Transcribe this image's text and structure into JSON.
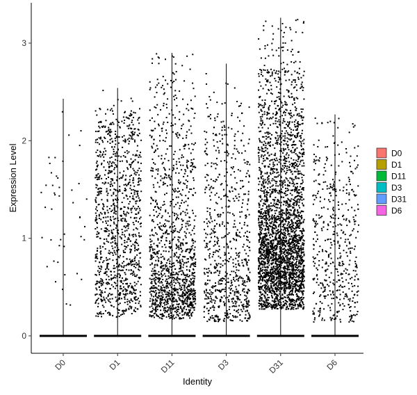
{
  "chart_data": {
    "type": "scatter",
    "subtype": "violin-jitter",
    "xlabel": "Identity",
    "ylabel": "Expression Level",
    "categories": [
      "D0",
      "D1",
      "D11",
      "D3",
      "D31",
      "D6"
    ],
    "ylim": [
      -0.17,
      3.3
    ],
    "yticks": [
      0,
      1,
      2,
      3
    ],
    "grid": false,
    "legend_position": "right",
    "legend": [
      {
        "name": "D0",
        "color": "#F8766D"
      },
      {
        "name": "D1",
        "color": "#B79F00"
      },
      {
        "name": "D11",
        "color": "#00BA38"
      },
      {
        "name": "D3",
        "color": "#00BFC4"
      },
      {
        "name": "D31",
        "color": "#619CFF"
      },
      {
        "name": "D6",
        "color": "#F564E3"
      }
    ],
    "groups": [
      {
        "name": "D0",
        "max": 2.43,
        "n_positive": 45,
        "profile": [
          [
            0.3,
            6
          ],
          [
            0.6,
            7
          ],
          [
            1.0,
            6
          ],
          [
            1.5,
            5
          ],
          [
            2.0,
            4
          ],
          [
            2.4,
            2
          ]
        ]
      },
      {
        "name": "D1",
        "max": 2.54,
        "n_positive": 1100,
        "profile": [
          [
            0.2,
            4
          ],
          [
            0.35,
            8
          ],
          [
            0.6,
            9
          ],
          [
            0.9,
            8
          ],
          [
            1.3,
            7
          ],
          [
            1.7,
            6
          ],
          [
            2.0,
            6
          ],
          [
            2.2,
            5
          ],
          [
            2.35,
            1
          ],
          [
            2.54,
            0.2
          ]
        ]
      },
      {
        "name": "D11",
        "max": 2.9,
        "n_positive": 1300,
        "profile": [
          [
            0.18,
            6
          ],
          [
            0.3,
            18
          ],
          [
            0.5,
            16
          ],
          [
            0.7,
            10
          ],
          [
            1.0,
            6
          ],
          [
            1.4,
            4
          ],
          [
            1.8,
            3
          ],
          [
            2.2,
            2
          ],
          [
            2.9,
            0.3
          ]
        ]
      },
      {
        "name": "D3",
        "max": 2.79,
        "n_positive": 750,
        "profile": [
          [
            0.15,
            5
          ],
          [
            0.3,
            14
          ],
          [
            0.5,
            10
          ],
          [
            0.8,
            7
          ],
          [
            1.2,
            5
          ],
          [
            1.6,
            4
          ],
          [
            2.0,
            3
          ],
          [
            2.4,
            1
          ],
          [
            2.79,
            0.2
          ]
        ]
      },
      {
        "name": "D31",
        "max": 3.26,
        "n_positive": 3000,
        "profile": [
          [
            0.28,
            6
          ],
          [
            0.45,
            18
          ],
          [
            0.7,
            20
          ],
          [
            1.0,
            15
          ],
          [
            1.3,
            10
          ],
          [
            1.6,
            7
          ],
          [
            2.0,
            6
          ],
          [
            2.4,
            4
          ],
          [
            2.75,
            1.5
          ],
          [
            3.26,
            0.2
          ]
        ]
      },
      {
        "name": "D6",
        "max": 2.27,
        "n_positive": 500,
        "profile": [
          [
            0.15,
            6
          ],
          [
            0.35,
            10
          ],
          [
            0.6,
            9
          ],
          [
            0.9,
            7
          ],
          [
            1.2,
            5
          ],
          [
            1.6,
            4
          ],
          [
            2.0,
            2
          ],
          [
            2.27,
            0.3
          ]
        ]
      }
    ]
  }
}
